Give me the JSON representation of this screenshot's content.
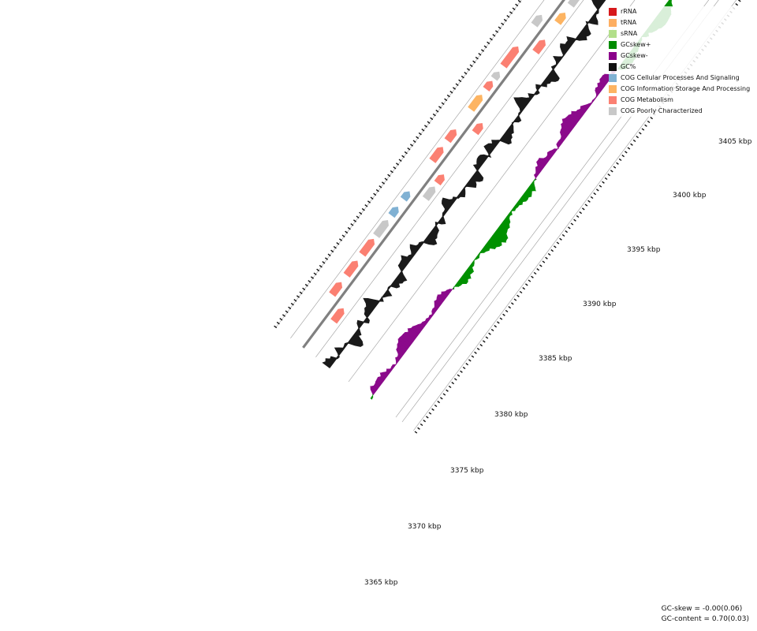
{
  "legend": {
    "items": [
      {
        "label": "rRNA",
        "color": "#d7191c"
      },
      {
        "label": "tRNA",
        "color": "#fdae61"
      },
      {
        "label": "sRNA",
        "color": "#b2df8a"
      },
      {
        "label": "GCskew+",
        "color": "#008b00"
      },
      {
        "label": "GCskew-",
        "color": "#8b008b"
      },
      {
        "label": "GC%",
        "color": "#111111"
      },
      {
        "label": "COG Cellular Processes And Signaling",
        "color": "#80b1d3"
      },
      {
        "label": "COG Information Storage And Processing",
        "color": "#fdb462"
      },
      {
        "label": "COG Metabolism",
        "color": "#fb8072"
      },
      {
        "label": "COG Poorly Characterized",
        "color": "#c8c8c8"
      }
    ]
  },
  "axis": {
    "labels": [
      "3365 kbp",
      "3370 kbp",
      "3375 kbp",
      "3380 kbp",
      "3385 kbp",
      "3390 kbp",
      "3395 kbp",
      "3400 kbp",
      "3405 kbp"
    ]
  },
  "stats": {
    "gc_skew": "GC-skew = -0.00(0.06)",
    "gc_content": "GC-content = 0.70(0.03)"
  }
}
